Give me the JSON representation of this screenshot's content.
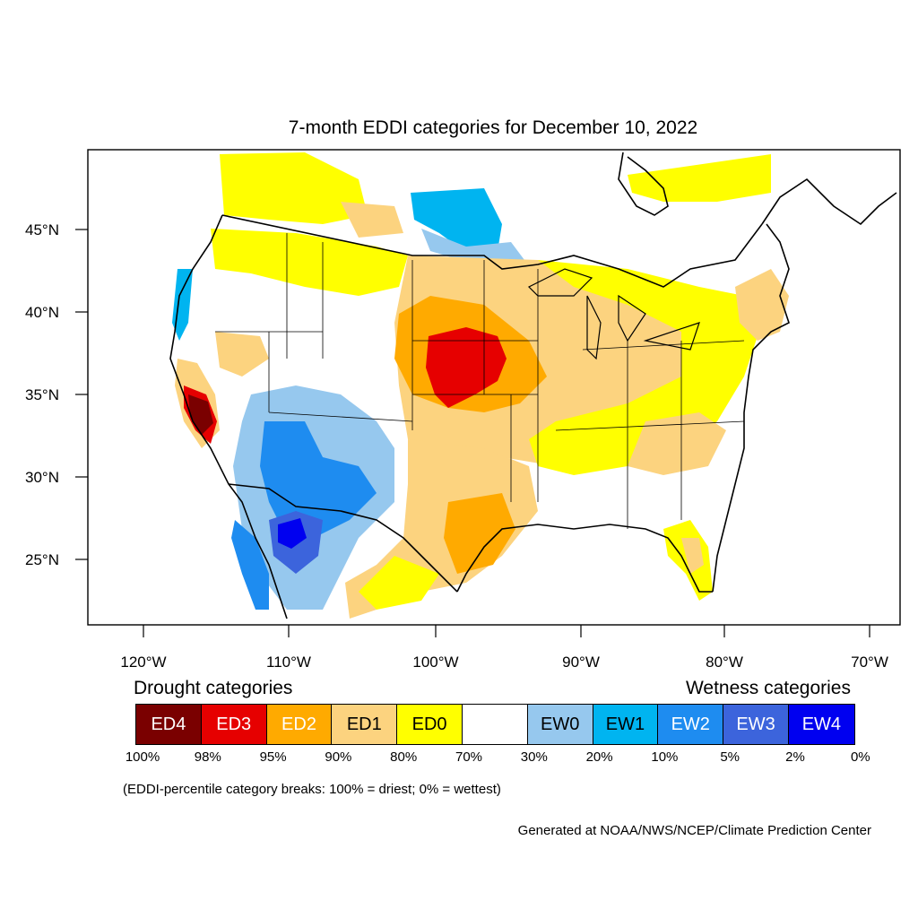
{
  "title": "7-month EDDI categories for December 10, 2022",
  "lat_labels": [
    "45°N",
    "40°N",
    "35°N",
    "30°N",
    "25°N"
  ],
  "lon_labels": [
    "120°W",
    "110°W",
    "100°W",
    "90°W",
    "80°W",
    "70°W"
  ],
  "legend": {
    "drought_heading": "Drought categories",
    "wetness_heading": "Wetness categories",
    "categories": [
      {
        "label": "ED4",
        "color": "#7a0000",
        "text_color": "#ffffff"
      },
      {
        "label": "ED3",
        "color": "#e60000",
        "text_color": "#ffffff"
      },
      {
        "label": "ED2",
        "color": "#ffaa00",
        "text_color": "#ffffff"
      },
      {
        "label": "ED1",
        "color": "#fcd37f",
        "text_color": "#000000"
      },
      {
        "label": "ED0",
        "color": "#ffff00",
        "text_color": "#000000"
      },
      {
        "label": "",
        "color": "#ffffff",
        "text_color": "#000000"
      },
      {
        "label": "EW0",
        "color": "#96c8ee",
        "text_color": "#000000"
      },
      {
        "label": "EW1",
        "color": "#00b4f0",
        "text_color": "#000000"
      },
      {
        "label": "EW2",
        "color": "#1e8cf0",
        "text_color": "#ffffff"
      },
      {
        "label": "EW3",
        "color": "#3c64dc",
        "text_color": "#ffffff"
      },
      {
        "label": "EW4",
        "color": "#0000f0",
        "text_color": "#ffffff"
      }
    ],
    "percentiles": [
      "100%",
      "98%",
      "95%",
      "90%",
      "80%",
      "70%",
      "30%",
      "20%",
      "10%",
      "5%",
      "2%",
      "0%"
    ]
  },
  "breaks_note": "(EDDI-percentile category breaks: 100% = driest; 0% = wettest)",
  "credit": "Generated at NOAA/NWS/NCEP/Climate Prediction Center"
}
